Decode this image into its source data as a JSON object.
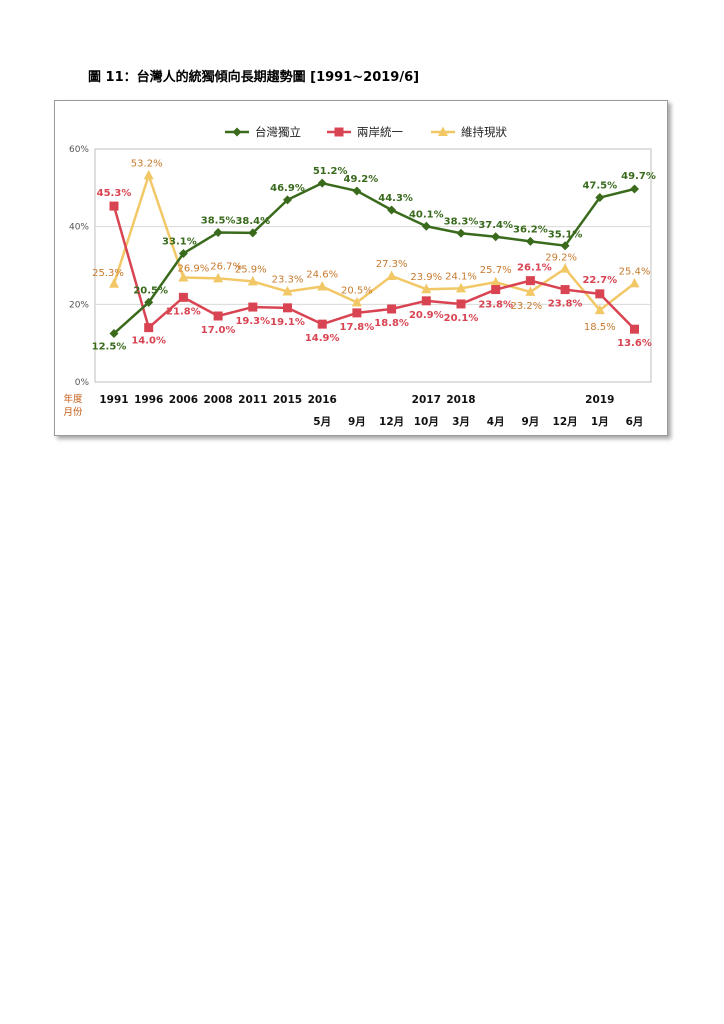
{
  "page": {
    "figure_title": "圖 11：台灣人的統獨傾向長期趨勢圖  [1991~2019/6]"
  },
  "chart_data": {
    "type": "line",
    "title": "",
    "y_ticks": [
      "0%",
      "20%",
      "40%",
      "60%"
    ],
    "ylim": [
      0,
      60
    ],
    "y_axis_title": [
      "年度",
      "月份"
    ],
    "x_year_labels": [
      "1991",
      "1996",
      "2006",
      "2008",
      "2011",
      "2015",
      "2016",
      "",
      "",
      "2017",
      "2018",
      "",
      "",
      "",
      "2019",
      ""
    ],
    "x_month_labels": [
      "",
      "",
      "",
      "",
      "",
      "",
      "5月",
      "9月",
      "12月",
      "10月",
      "3月",
      "4月",
      "9月",
      "12月",
      "1月",
      "6月"
    ],
    "legend_position": "top",
    "grid": true,
    "series": [
      {
        "name": "台灣獨立",
        "color": "#3a6b1d",
        "marker": "diamond",
        "values": [
          12.5,
          20.5,
          33.1,
          38.5,
          38.4,
          46.9,
          51.2,
          49.2,
          44.3,
          40.1,
          38.3,
          37.4,
          36.2,
          35.1,
          47.5,
          49.7
        ],
        "labels": [
          "12.5%",
          "20.5%",
          "33.1%",
          "38.5%",
          "38.4%",
          "46.9%",
          "51.2%",
          "49.2%",
          "44.3%",
          "40.1%",
          "38.3%",
          "37.4%",
          "36.2%",
          "35.1%",
          "47.5%",
          "49.7%"
        ]
      },
      {
        "name": "兩岸統一",
        "color": "#d94452",
        "marker": "square",
        "values": [
          45.3,
          14.0,
          21.8,
          17.0,
          19.3,
          19.1,
          14.9,
          17.8,
          18.8,
          20.9,
          20.1,
          23.8,
          26.1,
          23.8,
          22.7,
          13.6
        ],
        "labels": [
          "45.3%",
          "14.0%",
          "21.8%",
          "17.0%",
          "19.3%",
          "19.1%",
          "14.9%",
          "17.8%",
          "18.8%",
          "20.9%",
          "20.1%",
          "23.8%",
          "26.1%",
          "23.8%",
          "22.7%",
          "13.6%"
        ]
      },
      {
        "name": "維持現狀",
        "color": "#f2c867",
        "label_color": "#c87a2e",
        "marker": "triangle",
        "values": [
          25.3,
          53.2,
          26.9,
          26.7,
          25.9,
          23.3,
          24.6,
          20.5,
          27.3,
          23.9,
          24.1,
          25.7,
          23.2,
          29.2,
          18.5,
          25.4
        ],
        "labels": [
          "25.3%",
          "53.2%",
          "26.9%",
          "26.7%",
          "25.9%",
          "23.3%",
          "24.6%",
          "20.5%",
          "27.3%",
          "23.9%",
          "24.1%",
          "25.7%",
          "23.2%",
          "29.2%",
          "18.5%",
          "25.4%"
        ]
      }
    ]
  }
}
